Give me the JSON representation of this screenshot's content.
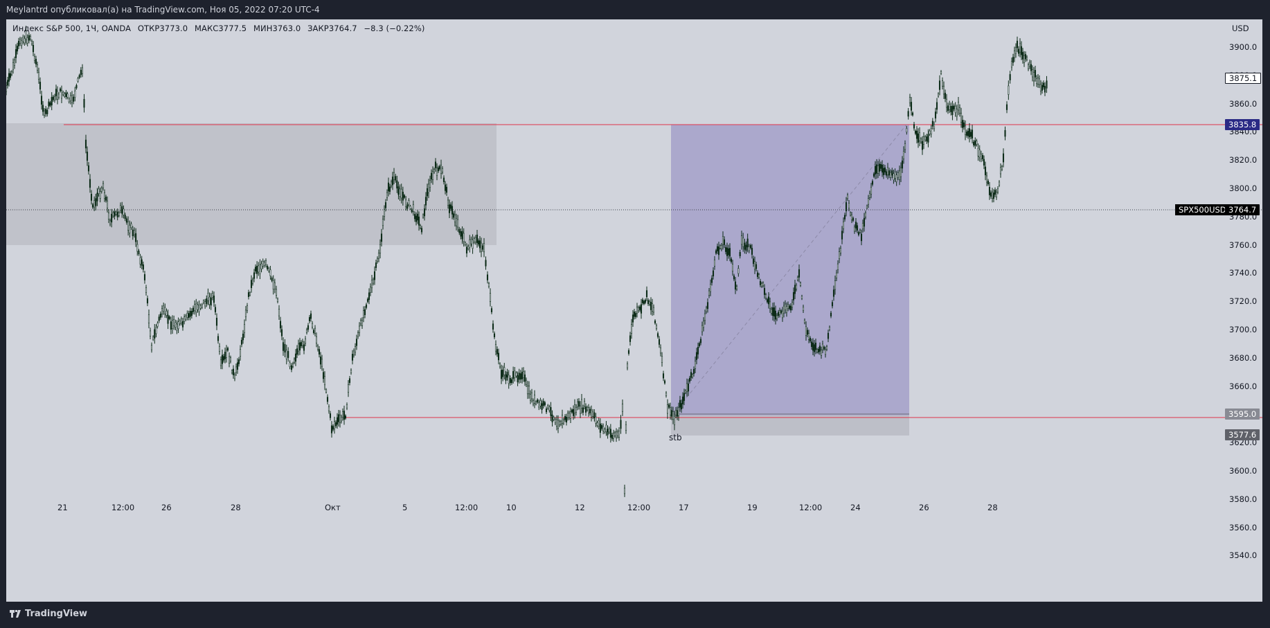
{
  "header": {
    "publisher_line": "Meylantrd опубликовал(а) на TradingView.com, Ноя 05, 2022 07:20 UTC-4"
  },
  "legend": {
    "instrument": "Индекс S&P 500, 1Ч, OANDA",
    "open": "ОТКР3773.0",
    "high": "МАКС3777.5",
    "low": "МИН3763.0",
    "close": "ЗАКР3764.7",
    "change": "−8.3 (−0.22%)"
  },
  "currency": "USD",
  "price_axis": [
    "3900.0",
    "3880.0",
    "3860.0",
    "3840.0",
    "3820.0",
    "3800.0",
    "3780.0",
    "3760.0",
    "3740.0",
    "3720.0",
    "3700.0",
    "3680.0",
    "3660.0",
    "3640.0",
    "3620.0",
    "3600.0",
    "3580.0",
    "3560.0",
    "3540.0"
  ],
  "time_axis": [
    "21",
    "12:00",
    "26",
    "28",
    "Окт",
    "5",
    "12:00",
    "10",
    "12",
    "12:00",
    "17",
    "19",
    "12:00",
    "24",
    "26",
    "28"
  ],
  "price_tags": {
    "current": "3875.1",
    "target": "3835.8",
    "symbol": "SPX500USD",
    "last": "3764.7",
    "entry": "3595.0",
    "stop": "3577.6"
  },
  "annotation": {
    "label": "stb"
  },
  "colors": {
    "chart_bg": "#d1d4dc",
    "candle": "#0b2a16",
    "red_line": "#e0334a",
    "profit_zone": "#aba8cc",
    "stop_zone": "#bdbfc8",
    "gray_zone": "#c0c2ca",
    "target_tag": "#2a2a85",
    "entry_tag": "#888a93"
  },
  "footer": {
    "brand": "TradingView",
    "logo_icon": "tradingview-logo-icon"
  }
}
